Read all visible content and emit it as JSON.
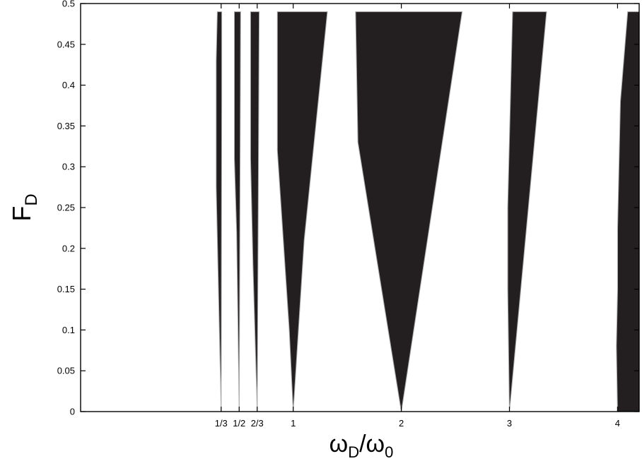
{
  "chart_data": {
    "type": "area",
    "title": "",
    "xlabel": {
      "main": "ω",
      "sub1": "D",
      "sep": "/ω",
      "sub2": "0"
    },
    "ylabel": {
      "main": "F",
      "sub": "D"
    },
    "ylim": [
      0,
      0.5
    ],
    "y_ticks": [
      "0",
      "0.05",
      "0.1",
      "0.15",
      "0.2",
      "0.25",
      "0.3",
      "0.35",
      "0.4",
      "0.45",
      "0.5"
    ],
    "x_ticks": [
      {
        "label": "1/3",
        "value": 0.3333
      },
      {
        "label": "1/2",
        "value": 0.5
      },
      {
        "label": "2/3",
        "value": 0.6667
      },
      {
        "label": "1",
        "value": 1
      },
      {
        "label": "2",
        "value": 2
      },
      {
        "label": "3",
        "value": 3
      },
      {
        "label": "4",
        "value": 4
      }
    ],
    "fill_color": "#231f20",
    "edge_color": "#a6a6a6",
    "regions": [
      {
        "center": 0.3333,
        "left": [
          [
            0.3333,
            0
          ],
          [
            0.2878,
            0.275
          ],
          [
            0.2878,
            0.43
          ],
          [
            0.2982,
            0.49
          ]
        ],
        "right": [
          [
            0.3333,
            0
          ],
          [
            0.3386,
            0.38
          ],
          [
            0.3386,
            0.49
          ]
        ]
      },
      {
        "center": 0.5,
        "left": [
          [
            0.5,
            0
          ],
          [
            0.4766,
            0.22
          ],
          [
            0.4556,
            0.31
          ],
          [
            0.4556,
            0.49
          ]
        ],
        "right": [
          [
            0.5,
            0
          ],
          [
            0.5134,
            0.49
          ]
        ]
      },
      {
        "center": 0.6667,
        "left": [
          [
            0.6667,
            0
          ],
          [
            0.6276,
            0.18
          ],
          [
            0.6057,
            0.31
          ],
          [
            0.6057,
            0.49
          ]
        ],
        "right": [
          [
            0.6667,
            0
          ],
          [
            0.6853,
            0.49
          ]
        ]
      },
      {
        "center": 1,
        "left": [
          [
            1,
            0
          ],
          [
            0.9633,
            0.1
          ],
          [
            0.8534,
            0.32
          ],
          [
            0.8534,
            0.49
          ]
        ],
        "right": [
          [
            1,
            0
          ],
          [
            1.1012,
            0.21
          ],
          [
            1.3157,
            0.49
          ]
        ]
      },
      {
        "center": 2,
        "left": [
          [
            2,
            0
          ],
          [
            1.5986,
            0.33
          ],
          [
            1.5766,
            0.49
          ]
        ],
        "right": [
          [
            2,
            0
          ],
          [
            2.5623,
            0.49
          ]
        ]
      },
      {
        "center": 3,
        "left": [
          [
            3,
            0
          ],
          [
            2.9843,
            0.15
          ],
          [
            2.9843,
            0.25
          ],
          [
            3.0293,
            0.49
          ]
        ],
        "right": [
          [
            3,
            0
          ],
          [
            3.3432,
            0.49
          ]
        ]
      },
      {
        "center": 4,
        "left": [
          [
            4,
            0
          ],
          [
            3.9895,
            0.08
          ],
          [
            4.0002,
            0.15
          ],
          [
            4.0002,
            0.225
          ],
          [
            4.0264,
            0.38
          ],
          [
            4.0943,
            0.49
          ]
        ],
        "right": [
          [
            4,
            0
          ],
          [
            4.2,
            0
          ],
          [
            4.2,
            0.49
          ]
        ]
      }
    ]
  }
}
